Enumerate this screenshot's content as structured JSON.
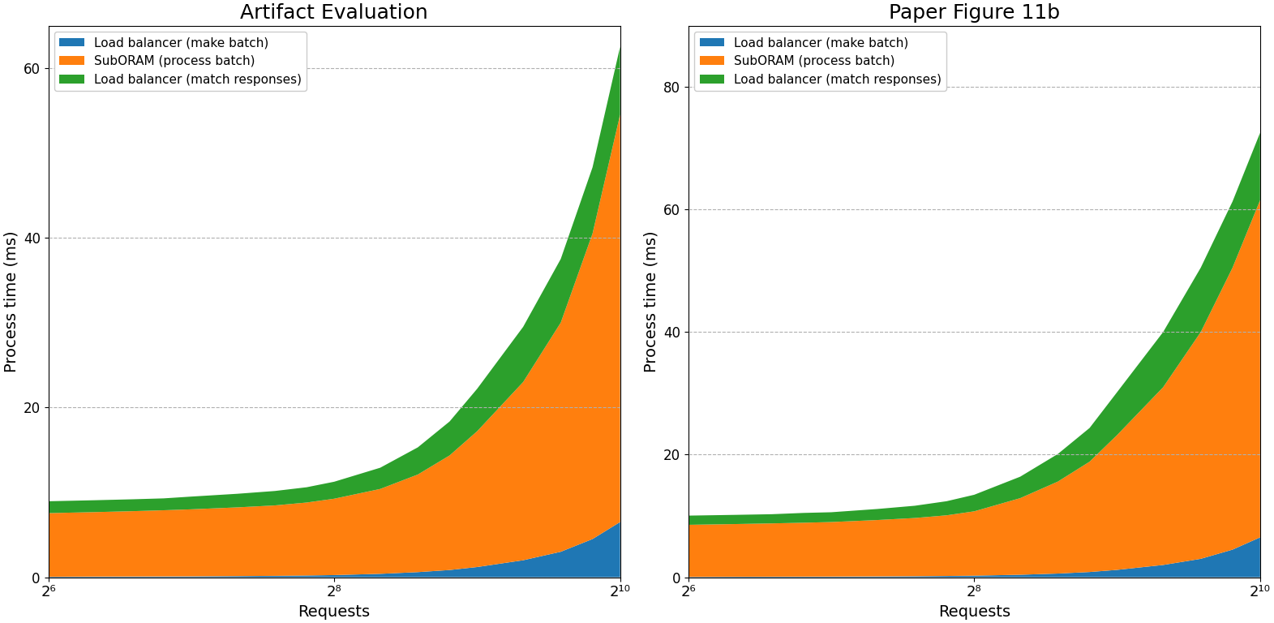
{
  "chart_data": [
    {
      "type": "area",
      "stacked": true,
      "title": "Artifact Evaluation",
      "xlabel": "Requests",
      "ylabel": "Process time (ms)",
      "x": [
        64,
        80,
        96,
        112,
        128,
        160,
        192,
        224,
        256,
        320,
        384,
        448,
        512,
        640,
        768,
        896,
        1024
      ],
      "series": [
        {
          "name": "Load balancer (make batch)",
          "values": [
            0.05,
            0.07,
            0.08,
            0.09,
            0.1,
            0.13,
            0.16,
            0.2,
            0.25,
            0.4,
            0.6,
            0.85,
            1.2,
            2.0,
            3.0,
            4.5,
            6.5
          ]
        },
        {
          "name": "SubORAM (process batch)",
          "values": [
            7.5,
            7.6,
            7.7,
            7.8,
            7.9,
            8.1,
            8.3,
            8.6,
            9.0,
            10.0,
            11.5,
            13.5,
            16.0,
            21.0,
            27.0,
            36.0,
            48.0
          ]
        },
        {
          "name": "Load balancer (match responses)",
          "values": [
            1.4,
            1.4,
            1.4,
            1.4,
            1.5,
            1.6,
            1.7,
            1.8,
            2.0,
            2.5,
            3.2,
            4.0,
            5.0,
            6.5,
            7.5,
            7.8,
            8.0
          ]
        }
      ],
      "log": "x",
      "xlim": [
        64,
        1024
      ],
      "xticks": [
        {
          "value": 64,
          "label": "2⁶"
        },
        {
          "value": 256,
          "label": "2⁸"
        },
        {
          "value": 1024,
          "label": "2¹⁰"
        }
      ],
      "ylim": [
        0,
        65
      ],
      "yticks": [
        0,
        20,
        40,
        60
      ],
      "grid": true,
      "legend": "upper left"
    },
    {
      "type": "area",
      "stacked": true,
      "title": "Paper Figure 11b",
      "xlabel": "Requests",
      "ylabel": "Process time (ms)",
      "x": [
        64,
        80,
        96,
        112,
        128,
        160,
        192,
        224,
        256,
        320,
        384,
        448,
        512,
        640,
        768,
        896,
        1024
      ],
      "series": [
        {
          "name": "Load balancer (make batch)",
          "values": [
            0.05,
            0.07,
            0.08,
            0.09,
            0.1,
            0.13,
            0.16,
            0.2,
            0.25,
            0.4,
            0.6,
            0.85,
            1.2,
            2.0,
            3.0,
            4.5,
            6.5
          ]
        },
        {
          "name": "SubORAM (process batch)",
          "values": [
            8.5,
            8.6,
            8.7,
            8.8,
            8.9,
            9.2,
            9.5,
            9.9,
            10.5,
            12.5,
            15.0,
            18.0,
            22.0,
            29.0,
            37.0,
            46.0,
            55.0
          ]
        },
        {
          "name": "Load balancer (match responses)",
          "values": [
            1.5,
            1.5,
            1.5,
            1.6,
            1.6,
            1.8,
            2.0,
            2.3,
            2.7,
            3.5,
            4.5,
            5.5,
            7.0,
            9.0,
            10.5,
            10.8,
            11.0
          ]
        }
      ],
      "log": "x",
      "xlim": [
        64,
        1024
      ],
      "xticks": [
        {
          "value": 64,
          "label": "2⁶"
        },
        {
          "value": 256,
          "label": "2⁸"
        },
        {
          "value": 1024,
          "label": "2¹⁰"
        }
      ],
      "ylim": [
        0,
        90
      ],
      "yticks": [
        0,
        20,
        40,
        60,
        80
      ],
      "grid": true,
      "legend": "upper left"
    }
  ]
}
